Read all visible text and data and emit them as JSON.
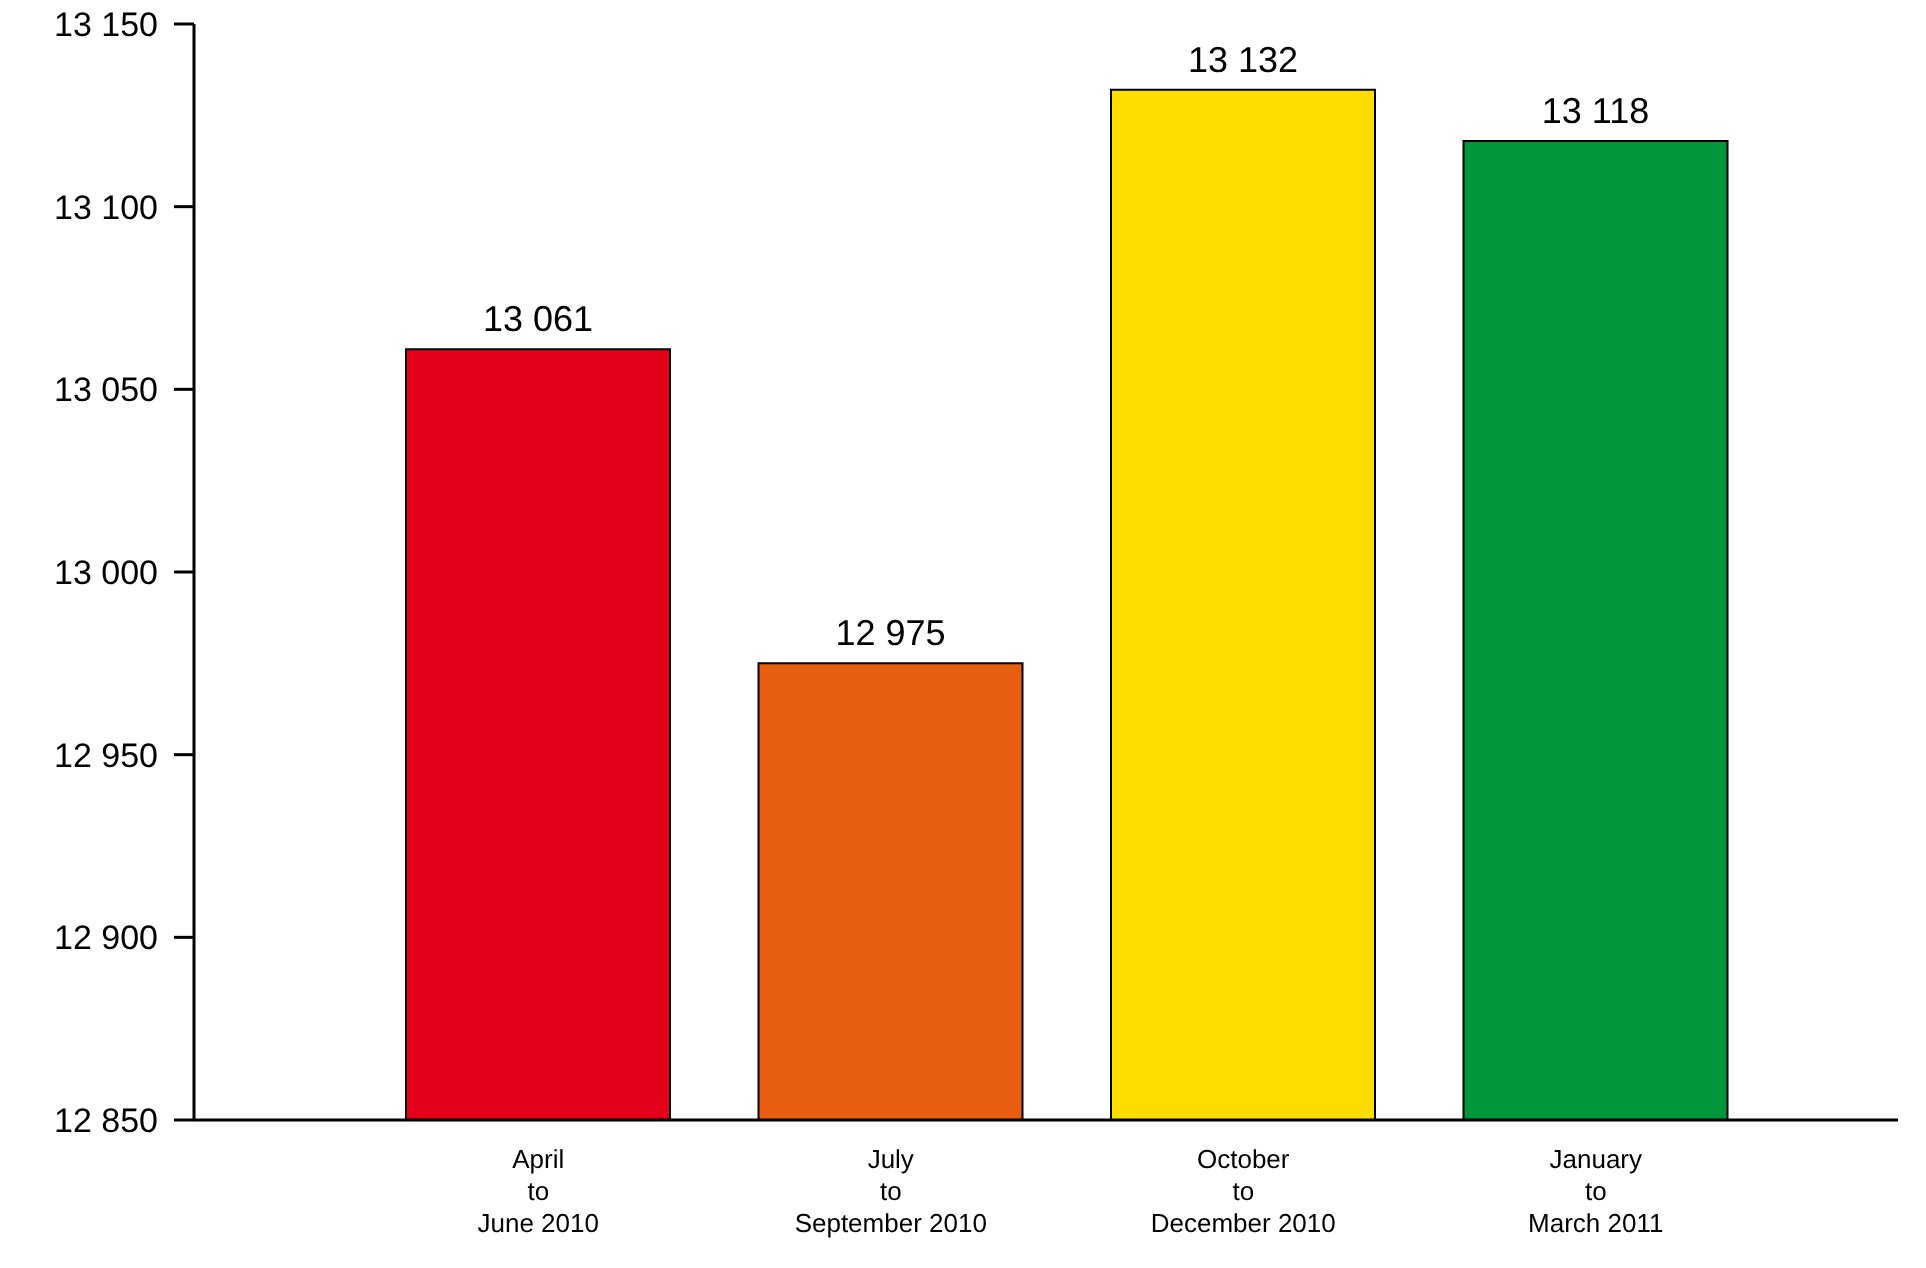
{
  "chart_data": {
    "type": "bar",
    "categories": [
      "April\nto\nJune 2010",
      "July\nto\nSeptember 2010",
      "October\nto\nDecember 2010",
      "January\nto\nMarch 2011"
    ],
    "values": [
      13061,
      12975,
      13132,
      13118
    ],
    "value_labels": [
      "13 061",
      "12 975",
      "13 132",
      "13 118"
    ],
    "colors": [
      "#e2001a",
      "#e85e10",
      "#ffdc00",
      "#00963a"
    ],
    "ylim": [
      12850,
      13150
    ],
    "yticks": [
      {
        "value": 12850,
        "label": "12 850"
      },
      {
        "value": 12900,
        "label": "12 900"
      },
      {
        "value": 12950,
        "label": "12 950"
      },
      {
        "value": 13000,
        "label": "13 000"
      },
      {
        "value": 13050,
        "label": "13 050"
      },
      {
        "value": 13100,
        "label": "13 100"
      },
      {
        "value": 13150,
        "label": "13 150"
      }
    ],
    "grid": false,
    "legend": false
  }
}
